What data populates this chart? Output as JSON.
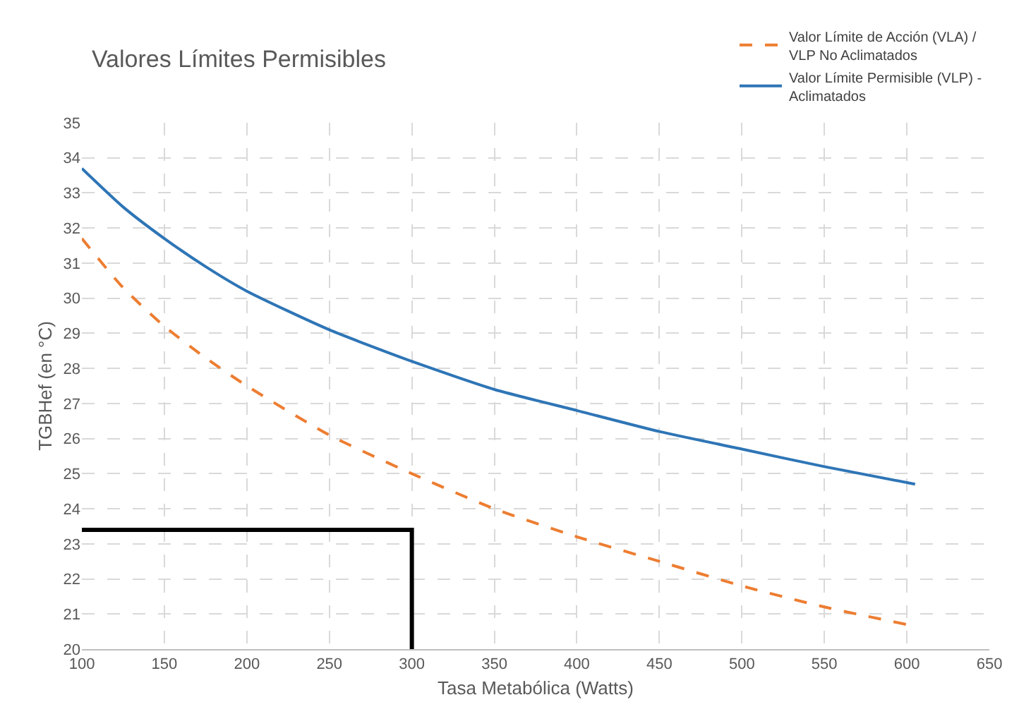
{
  "chart_data": {
    "type": "line",
    "title": "Valores Límites Permisibles",
    "xlabel": "Tasa Metabólica (Watts)",
    "ylabel": "TGBHef (en °C)",
    "xlim": [
      100,
      650
    ],
    "xticks": [
      100,
      150,
      200,
      250,
      300,
      350,
      400,
      450,
      500,
      550,
      600,
      650
    ],
    "ylim": [
      20,
      35
    ],
    "yticks": [
      20,
      21,
      22,
      23,
      24,
      25,
      26,
      27,
      28,
      29,
      30,
      31,
      32,
      33,
      34,
      35
    ],
    "grid": true,
    "legend": "top right",
    "marker": "none",
    "series": [
      {
        "name": "Valor Límite de Acción (VLA) / VLP No Aclimatados",
        "color": "#ed7d31",
        "line_style": "dashed",
        "x": [
          100,
          125,
          150,
          175,
          200,
          250,
          300,
          350,
          400,
          450,
          500,
          550,
          600
        ],
        "values": [
          31.7,
          30.3,
          29.2,
          28.3,
          27.5,
          26.1,
          25.0,
          24.0,
          23.2,
          22.5,
          21.8,
          21.2,
          20.7
        ]
      },
      {
        "name": "Valor Límite Permisible (VLP) - Aclimatados",
        "color": "#2e75b6",
        "line_style": "solid",
        "x": [
          100,
          125,
          150,
          175,
          200,
          250,
          300,
          350,
          400,
          450,
          500,
          550,
          605
        ],
        "values": [
          33.7,
          32.6,
          31.7,
          30.9,
          30.2,
          29.1,
          28.2,
          27.4,
          26.8,
          26.2,
          25.7,
          25.2,
          24.7
        ]
      },
      {
        "color": "#000000",
        "line_style": "solid",
        "x": [
          100,
          300,
          300
        ],
        "values": [
          23.4,
          23.4,
          20
        ]
      }
    ]
  }
}
